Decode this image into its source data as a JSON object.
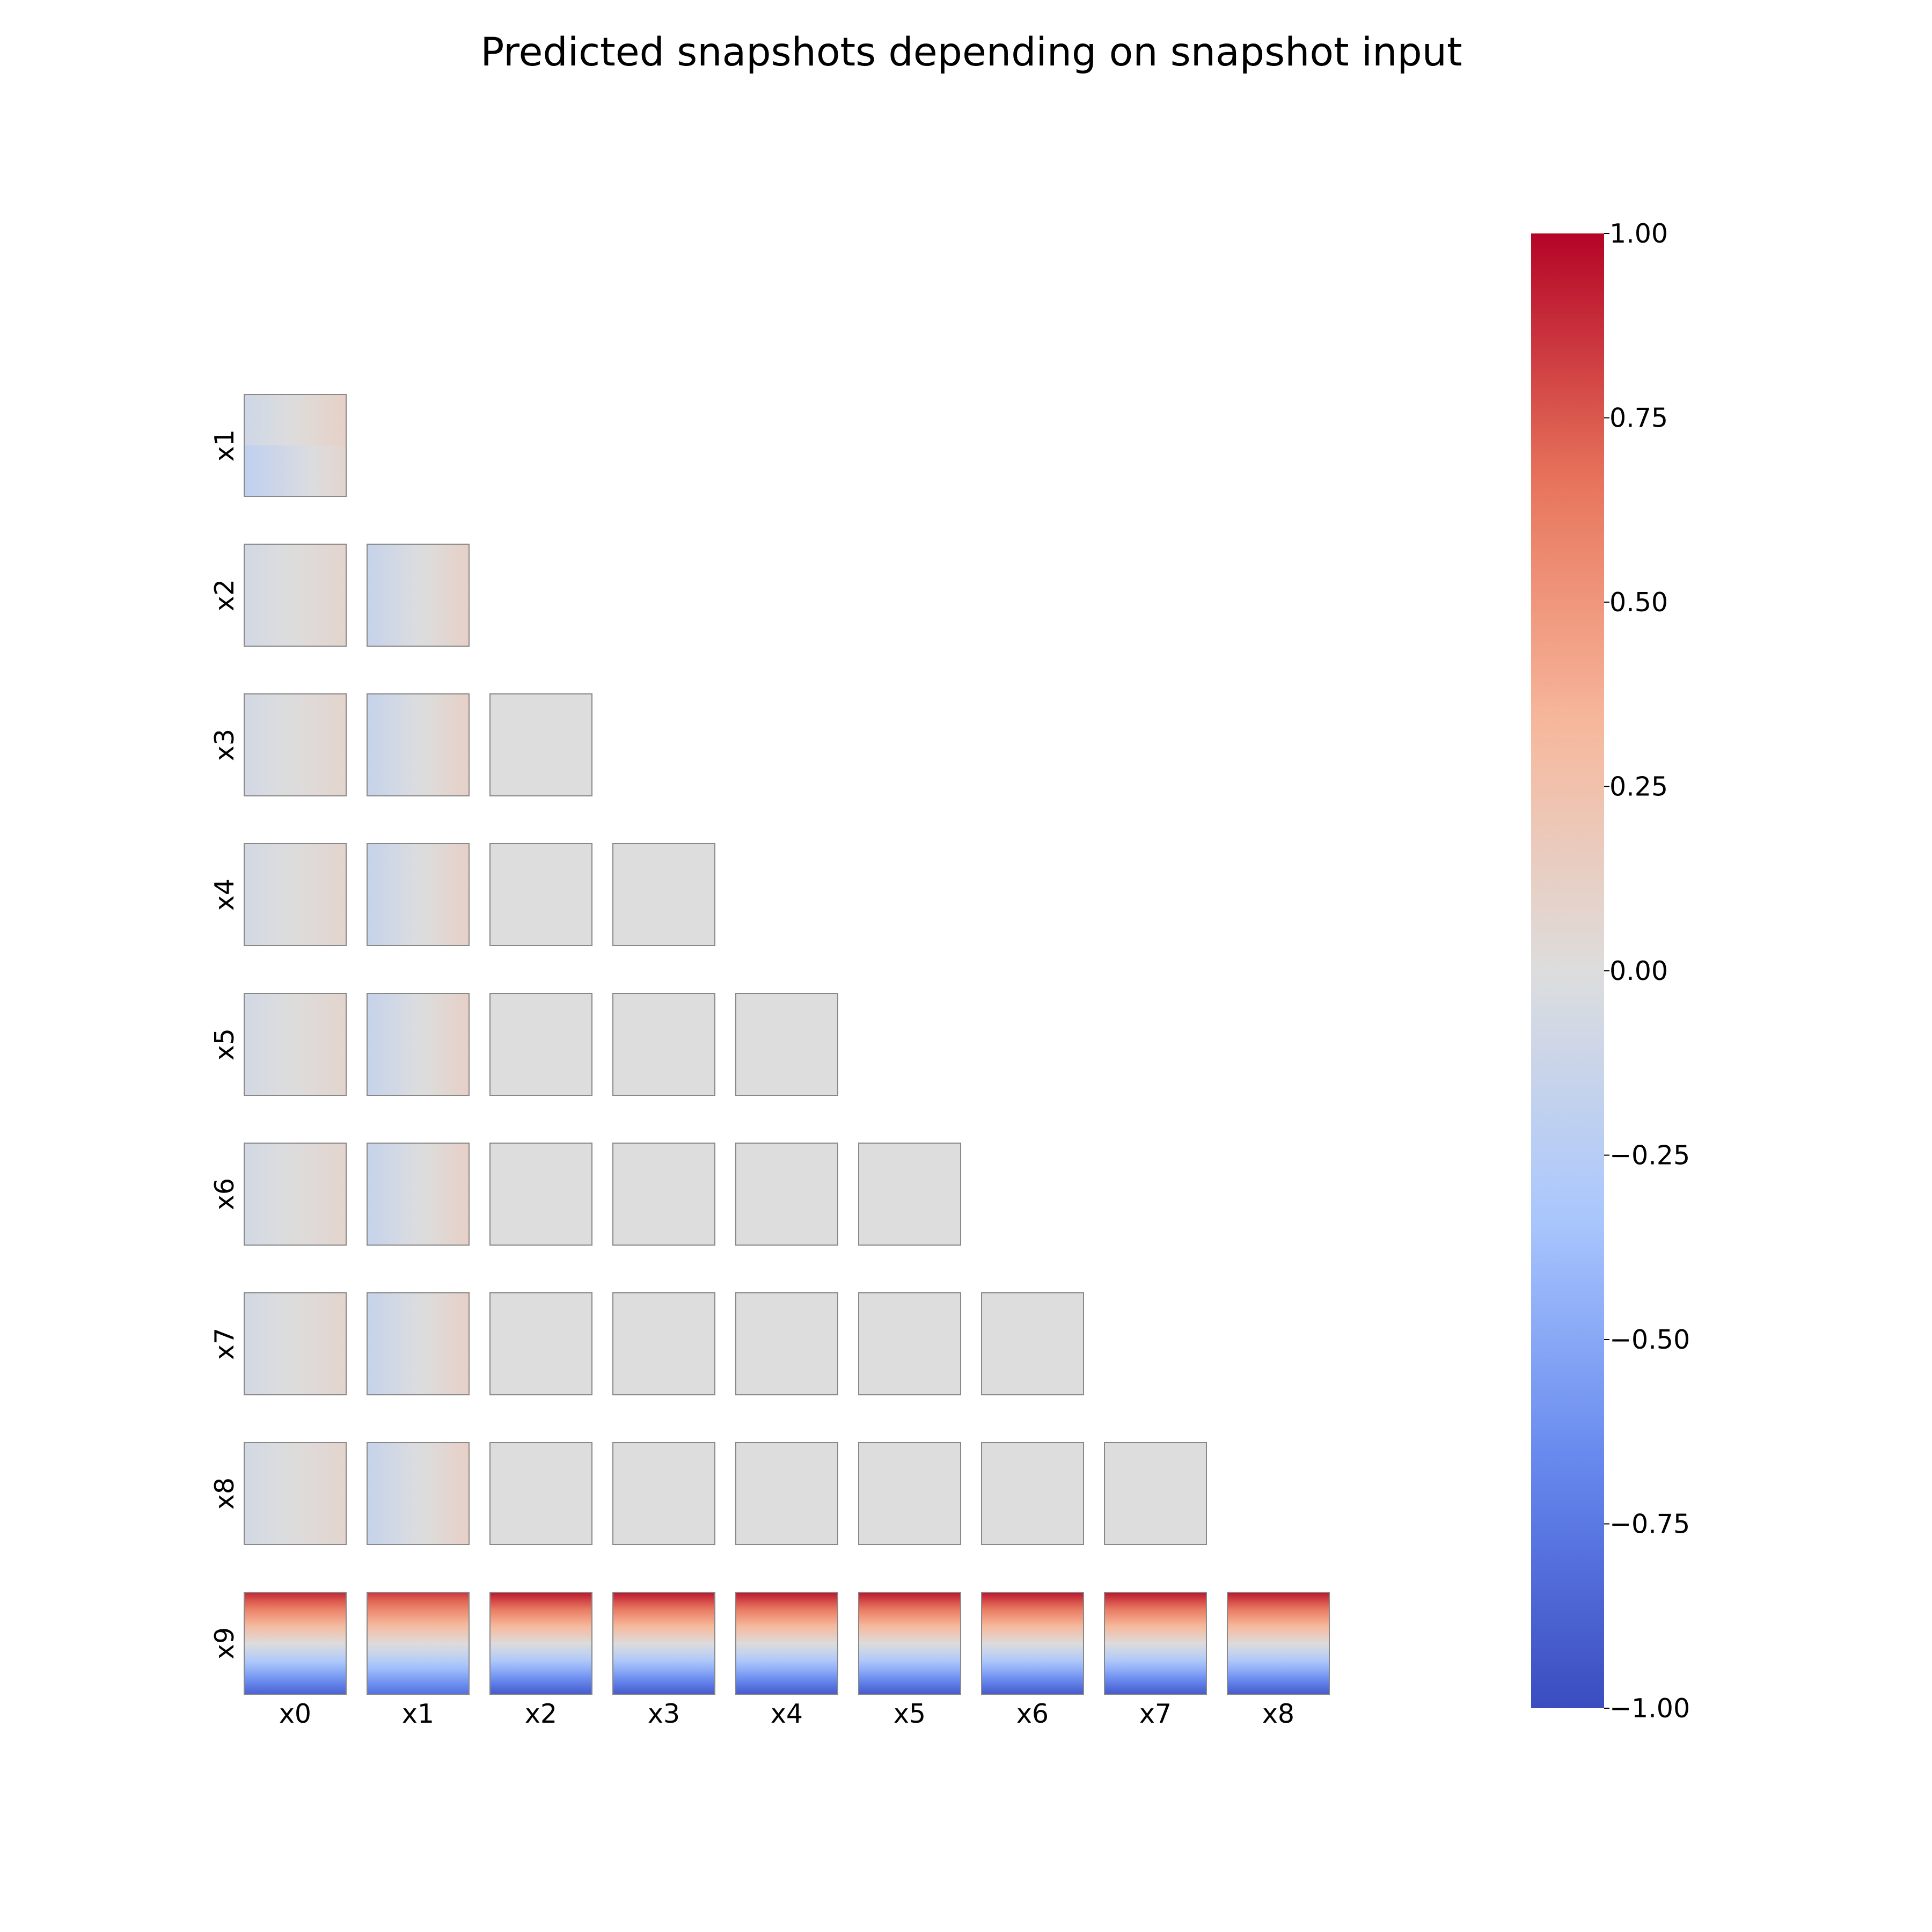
{
  "chart_data": {
    "type": "heatmap",
    "title": "Predicted snapshots depending on snapshot input",
    "layout": "lower-triangular grid of small heatmap panels; row variable = predicted snapshot, column variable = input snapshot",
    "row_labels": [
      "x1",
      "x2",
      "x3",
      "x4",
      "x5",
      "x6",
      "x7",
      "x8",
      "x9"
    ],
    "col_labels": [
      "x0",
      "x1",
      "x2",
      "x3",
      "x4",
      "x5",
      "x6",
      "x7",
      "x8"
    ],
    "colormap": "coolwarm",
    "colormap_stops": [
      "#3b4cc0",
      "#6688ee",
      "#aac7fd",
      "#dddddd",
      "#f7b89c",
      "#e7745b",
      "#b40426"
    ],
    "colorbar": {
      "range": [
        -1.0,
        1.0
      ],
      "ticks": [
        1.0,
        0.75,
        0.5,
        0.25,
        0.0,
        -0.25,
        -0.5,
        -0.75,
        -1.0
      ],
      "tick_labels": [
        "1.00",
        "0.75",
        "0.50",
        "0.25",
        "0.00",
        "−0.25",
        "−0.50",
        "−0.75",
        "−1.00"
      ],
      "placement": "right"
    },
    "panels": [
      {
        "row": "x1",
        "col": "x0",
        "pattern": "quadrant",
        "values": {
          "top_left": -0.1,
          "top_right": 0.12,
          "bottom_left": -0.2,
          "bottom_right": 0.08
        }
      },
      {
        "row": "x2",
        "col": "x0",
        "pattern": "horizontal",
        "values": {
          "left": -0.07,
          "right": 0.08
        }
      },
      {
        "row": "x2",
        "col": "x1",
        "pattern": "horizontal",
        "values": {
          "left": -0.15,
          "right": 0.12
        }
      },
      {
        "row": "x3",
        "col": "x0",
        "pattern": "horizontal",
        "values": {
          "left": -0.07,
          "right": 0.08
        }
      },
      {
        "row": "x3",
        "col": "x1",
        "pattern": "horizontal",
        "values": {
          "left": -0.15,
          "right": 0.12
        }
      },
      {
        "row": "x3",
        "col": "x2",
        "pattern": "uniform",
        "values": {
          "value": 0.0
        }
      },
      {
        "row": "x4",
        "col": "x0",
        "pattern": "horizontal",
        "values": {
          "left": -0.07,
          "right": 0.08
        }
      },
      {
        "row": "x4",
        "col": "x1",
        "pattern": "horizontal",
        "values": {
          "left": -0.15,
          "right": 0.12
        }
      },
      {
        "row": "x4",
        "col": "x2",
        "pattern": "uniform",
        "values": {
          "value": 0.0
        }
      },
      {
        "row": "x4",
        "col": "x3",
        "pattern": "uniform",
        "values": {
          "value": 0.0
        }
      },
      {
        "row": "x5",
        "col": "x0",
        "pattern": "horizontal",
        "values": {
          "left": -0.07,
          "right": 0.08
        }
      },
      {
        "row": "x5",
        "col": "x1",
        "pattern": "horizontal",
        "values": {
          "left": -0.15,
          "right": 0.12
        }
      },
      {
        "row": "x5",
        "col": "x2",
        "pattern": "uniform",
        "values": {
          "value": 0.0
        }
      },
      {
        "row": "x5",
        "col": "x3",
        "pattern": "uniform",
        "values": {
          "value": 0.0
        }
      },
      {
        "row": "x5",
        "col": "x4",
        "pattern": "uniform",
        "values": {
          "value": 0.0
        }
      },
      {
        "row": "x6",
        "col": "x0",
        "pattern": "horizontal",
        "values": {
          "left": -0.07,
          "right": 0.08
        }
      },
      {
        "row": "x6",
        "col": "x1",
        "pattern": "horizontal",
        "values": {
          "left": -0.15,
          "right": 0.12
        }
      },
      {
        "row": "x6",
        "col": "x2",
        "pattern": "uniform",
        "values": {
          "value": 0.0
        }
      },
      {
        "row": "x6",
        "col": "x3",
        "pattern": "uniform",
        "values": {
          "value": 0.0
        }
      },
      {
        "row": "x6",
        "col": "x4",
        "pattern": "uniform",
        "values": {
          "value": 0.0
        }
      },
      {
        "row": "x6",
        "col": "x5",
        "pattern": "uniform",
        "values": {
          "value": 0.0
        }
      },
      {
        "row": "x7",
        "col": "x0",
        "pattern": "horizontal",
        "values": {
          "left": -0.07,
          "right": 0.08
        }
      },
      {
        "row": "x7",
        "col": "x1",
        "pattern": "horizontal",
        "values": {
          "left": -0.15,
          "right": 0.12
        }
      },
      {
        "row": "x7",
        "col": "x2",
        "pattern": "uniform",
        "values": {
          "value": 0.0
        }
      },
      {
        "row": "x7",
        "col": "x3",
        "pattern": "uniform",
        "values": {
          "value": 0.0
        }
      },
      {
        "row": "x7",
        "col": "x4",
        "pattern": "uniform",
        "values": {
          "value": 0.0
        }
      },
      {
        "row": "x7",
        "col": "x5",
        "pattern": "uniform",
        "values": {
          "value": 0.0
        }
      },
      {
        "row": "x7",
        "col": "x6",
        "pattern": "uniform",
        "values": {
          "value": 0.0
        }
      },
      {
        "row": "x8",
        "col": "x0",
        "pattern": "horizontal",
        "values": {
          "left": -0.07,
          "right": 0.08
        }
      },
      {
        "row": "x8",
        "col": "x1",
        "pattern": "horizontal",
        "values": {
          "left": -0.15,
          "right": 0.12
        }
      },
      {
        "row": "x8",
        "col": "x2",
        "pattern": "uniform",
        "values": {
          "value": 0.0
        }
      },
      {
        "row": "x8",
        "col": "x3",
        "pattern": "uniform",
        "values": {
          "value": 0.0
        }
      },
      {
        "row": "x8",
        "col": "x4",
        "pattern": "uniform",
        "values": {
          "value": 0.0
        }
      },
      {
        "row": "x8",
        "col": "x5",
        "pattern": "uniform",
        "values": {
          "value": 0.0
        }
      },
      {
        "row": "x8",
        "col": "x6",
        "pattern": "uniform",
        "values": {
          "value": 0.0
        }
      },
      {
        "row": "x8",
        "col": "x7",
        "pattern": "uniform",
        "values": {
          "value": 0.0
        }
      },
      {
        "row": "x9",
        "col": "x0",
        "pattern": "vertical",
        "values": {
          "top": 0.9,
          "bottom": -0.88
        }
      },
      {
        "row": "x9",
        "col": "x1",
        "pattern": "vertical",
        "values": {
          "top": 0.85,
          "bottom": -0.8
        }
      },
      {
        "row": "x9",
        "col": "x2",
        "pattern": "vertical",
        "values": {
          "top": 0.95,
          "bottom": -0.92
        }
      },
      {
        "row": "x9",
        "col": "x3",
        "pattern": "vertical",
        "values": {
          "top": 0.95,
          "bottom": -0.92
        }
      },
      {
        "row": "x9",
        "col": "x4",
        "pattern": "vertical",
        "values": {
          "top": 0.95,
          "bottom": -0.92
        }
      },
      {
        "row": "x9",
        "col": "x5",
        "pattern": "vertical",
        "values": {
          "top": 0.95,
          "bottom": -0.92
        }
      },
      {
        "row": "x9",
        "col": "x6",
        "pattern": "vertical",
        "values": {
          "top": 0.95,
          "bottom": -0.92
        }
      },
      {
        "row": "x9",
        "col": "x7",
        "pattern": "vertical",
        "values": {
          "top": 0.95,
          "bottom": -0.92
        }
      },
      {
        "row": "x9",
        "col": "x8",
        "pattern": "vertical",
        "values": {
          "top": 0.95,
          "bottom": -0.92
        }
      }
    ]
  }
}
